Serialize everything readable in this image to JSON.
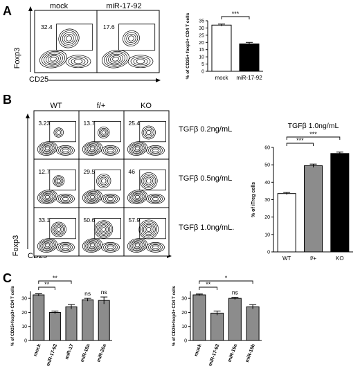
{
  "panel_letters": {
    "a": "A",
    "b": "B",
    "c": "C"
  },
  "panel_a": {
    "flow": {
      "column_titles": [
        "mock",
        "miR-17-92"
      ],
      "gate_values": [
        "32.4",
        "17.6"
      ],
      "y_axis": "Foxp3",
      "x_axis": "CD25"
    }
  },
  "panel_b": {
    "flow": {
      "column_titles": [
        "WT",
        "f/+",
        "KO"
      ],
      "row_labels": [
        "TGFβ 0.2ng/mL",
        "TGFβ 0.5ng/mL",
        "TGFβ 1.0ng/mL."
      ],
      "gate_values": [
        [
          "3.23",
          "13.7",
          "25.4"
        ],
        [
          "12.7",
          "29.5",
          "46"
        ],
        [
          "33.1",
          "50.6",
          "57.9"
        ]
      ],
      "y_axis": "Foxp3",
      "x_axis": "CD25"
    }
  },
  "chart_data": [
    {
      "id": "a-bar",
      "type": "bar",
      "title": "",
      "ylabel": "% of CD25+ foxp3+ CD4 T cells",
      "categories": [
        "mock",
        "miR-17-92"
      ],
      "values": [
        32,
        19
      ],
      "errors": [
        0.7,
        1.0
      ],
      "bar_colors": [
        "#ffffff",
        "#000000"
      ],
      "ylim": [
        0,
        35
      ],
      "yticks": [
        "0",
        "5",
        "10",
        "15",
        "20",
        "25",
        "30",
        "35"
      ],
      "significance": [
        {
          "from": "mock",
          "to": "miR-17-92",
          "label": "***"
        }
      ]
    },
    {
      "id": "b-bar",
      "type": "bar",
      "title": "TGFβ 1.0ng/mL",
      "ylabel": "% of iTreg cells",
      "categories": [
        "WT",
        "f/+",
        "KO"
      ],
      "values": [
        33.5,
        49.5,
        56.5
      ],
      "errors": [
        0.6,
        0.9,
        0.8
      ],
      "bar_colors": [
        "#ffffff",
        "#8c8c8c",
        "#000000"
      ],
      "ylim": [
        0,
        60
      ],
      "yticks": [
        "0",
        "10",
        "20",
        "30",
        "40",
        "50",
        "60"
      ],
      "significance": [
        {
          "from": "WT",
          "to": "f/+",
          "label": "***"
        },
        {
          "from": "WT",
          "to": "KO",
          "label": "***"
        }
      ]
    },
    {
      "id": "c-left",
      "type": "bar",
      "title": "",
      "ylabel": "% of CD25+foxp3+ CD4 T cells",
      "categories": [
        "mock",
        "miR-17-92",
        "miR-17",
        "miR-18a",
        "miR-20a"
      ],
      "values": [
        32.5,
        20,
        24,
        29,
        28.5
      ],
      "errors": [
        0.8,
        1.0,
        1.6,
        1.0,
        2.5
      ],
      "bar_colors": [
        "#8c8c8c",
        "#8c8c8c",
        "#8c8c8c",
        "#8c8c8c",
        "#8c8c8c"
      ],
      "ylim": [
        0,
        35
      ],
      "yticks": [
        "0",
        "10",
        "20",
        "30"
      ],
      "significance": [
        {
          "from": "mock",
          "to": "miR-17-92",
          "label": "**"
        },
        {
          "from": "mock",
          "to": "miR-17",
          "label": "**"
        }
      ],
      "annotations": [
        {
          "category": "miR-18a",
          "label": "ns"
        },
        {
          "category": "miR-20a",
          "label": "ns"
        }
      ]
    },
    {
      "id": "c-right",
      "type": "bar",
      "title": "",
      "ylabel": "% of CD25+foxp3+ CD4 T cells",
      "categories": [
        "mock",
        "miR-17-92",
        "miR-19a",
        "miR-19b"
      ],
      "values": [
        32.5,
        19.5,
        30,
        24
      ],
      "errors": [
        0.6,
        1.5,
        0.8,
        1.5
      ],
      "bar_colors": [
        "#8c8c8c",
        "#8c8c8c",
        "#8c8c8c",
        "#8c8c8c"
      ],
      "ylim": [
        0,
        35
      ],
      "yticks": [
        "0",
        "10",
        "20",
        "30"
      ],
      "significance": [
        {
          "from": "mock",
          "to": "miR-17-92",
          "label": "**"
        },
        {
          "from": "mock",
          "to": "miR-19b",
          "label": "*"
        }
      ],
      "annotations": [
        {
          "category": "miR-19a",
          "label": "ns"
        }
      ]
    }
  ]
}
